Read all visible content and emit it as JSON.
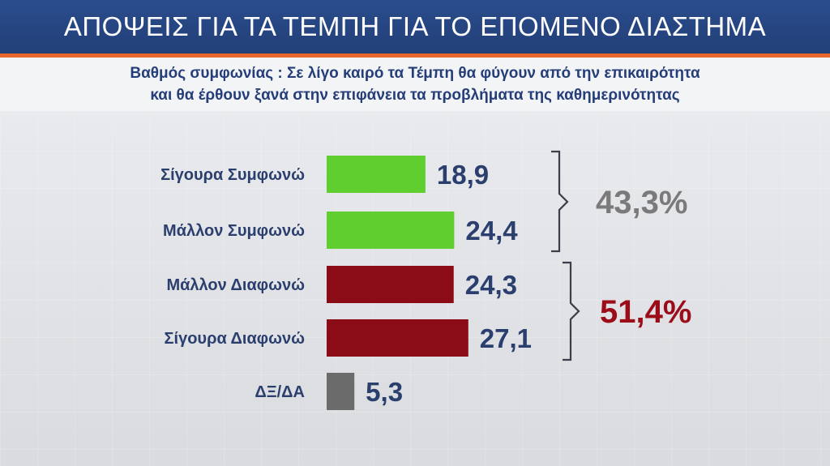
{
  "header": {
    "title": "ΑΠΟΨΕΙΣ ΓΙΑ ΤΑ ΤΕΜΠΗ ΓΙΑ ΤΟ ΕΠΟΜΕΝΟ ΔΙΑΣΤΗΜΑ"
  },
  "subtitle": {
    "line1": "Βαθμός συμφωνίας : Σε λίγο καιρό τα Τέμπη θα φύγουν από την επικαιρότητα",
    "line2": "και θα έρθουν ξανά στην επιφάνεια τα προβλήματα της καθημερινότητας"
  },
  "chart_data": {
    "type": "bar",
    "orientation": "horizontal",
    "categories": [
      "Σίγουρα Συμφωνώ",
      "Μάλλον Συμφωνώ",
      "Μάλλον Διαφωνώ",
      "Σίγουρα Διαφωνώ",
      "ΔΞ/ΔΑ"
    ],
    "values": [
      18.9,
      24.4,
      24.3,
      27.1,
      5.3
    ],
    "value_labels": [
      "18,9",
      "24,4",
      "24,3",
      "27,1",
      "5,3"
    ],
    "colors": [
      "#5ecf2e",
      "#5ecf2e",
      "#8b0c17",
      "#8b0c17",
      "#6b6b6b"
    ],
    "groups": [
      {
        "categories": [
          "Σίγουρα Συμφωνώ",
          "Μάλλον Συμφωνώ"
        ],
        "total": "43,3%",
        "color": "#7a7a7a"
      },
      {
        "categories": [
          "Μάλλον Διαφωνώ",
          "Σίγουρα Διαφωνώ"
        ],
        "total": "51,4%",
        "color": "#9b0d18"
      }
    ],
    "title": "",
    "xlabel": "",
    "ylabel": ""
  }
}
